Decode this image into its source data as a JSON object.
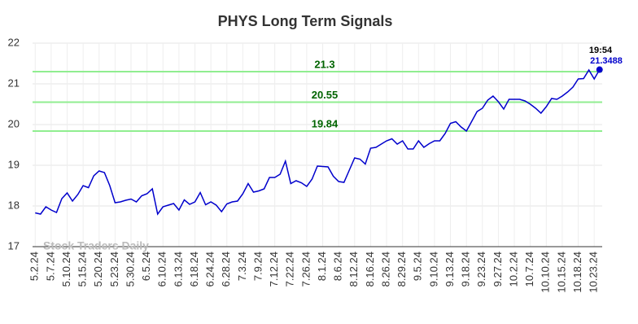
{
  "chart_data": {
    "type": "line",
    "title": "PHYS Long Term Signals",
    "categories": [
      "5.2.24",
      null,
      null,
      "5.7.24",
      null,
      null,
      "5.10.24",
      null,
      null,
      "5.15.24",
      null,
      null,
      "5.20.24",
      null,
      null,
      "5.23.24",
      null,
      null,
      "5.30.24",
      null,
      null,
      "6.5.24",
      null,
      null,
      "6.10.24",
      null,
      null,
      "6.13.24",
      null,
      null,
      "6.18.24",
      null,
      null,
      "6.24.24",
      null,
      null,
      "6.28.24",
      null,
      null,
      "7.3.24",
      null,
      null,
      "7.9.24",
      null,
      null,
      "7.12.24",
      null,
      null,
      "7.22.24",
      null,
      null,
      "7.26.24",
      null,
      null,
      "8.1.24",
      null,
      null,
      "8.6.24",
      null,
      null,
      "8.12.24",
      null,
      null,
      "8.16.24",
      null,
      null,
      "8.26.24",
      null,
      null,
      "8.29.24",
      null,
      null,
      "9.5.24",
      null,
      null,
      "9.10.24",
      null,
      null,
      "9.13.24",
      null,
      null,
      "9.18.24",
      null,
      null,
      "9.23.24",
      null,
      null,
      "9.27.24",
      null,
      null,
      "10.2.24",
      null,
      null,
      "10.7.24",
      null,
      null,
      "10.10.24",
      null,
      null,
      "10.15.24",
      null,
      null,
      "10.18.24",
      null,
      null,
      "10.23.24",
      null
    ],
    "values": [
      17.83,
      17.8,
      17.98,
      17.9,
      17.84,
      18.18,
      18.32,
      18.12,
      18.28,
      18.5,
      18.45,
      18.74,
      18.86,
      18.82,
      18.5,
      18.08,
      18.1,
      18.14,
      18.17,
      18.1,
      18.25,
      18.3,
      18.42,
      17.8,
      17.98,
      18.02,
      18.06,
      17.9,
      18.15,
      18.04,
      18.1,
      18.33,
      18.03,
      18.1,
      18.02,
      17.86,
      18.05,
      18.1,
      18.12,
      18.3,
      18.55,
      18.34,
      18.37,
      18.42,
      18.7,
      18.7,
      18.78,
      19.1,
      18.55,
      18.62,
      18.57,
      18.48,
      18.66,
      18.98,
      18.97,
      18.96,
      18.73,
      18.6,
      18.58,
      18.88,
      19.18,
      19.15,
      19.03,
      19.42,
      19.44,
      19.52,
      19.6,
      19.65,
      19.52,
      19.6,
      19.4,
      19.4,
      19.6,
      19.44,
      19.53,
      19.6,
      19.6,
      19.78,
      20.03,
      20.07,
      19.94,
      19.84,
      20.08,
      20.32,
      20.4,
      20.6,
      20.7,
      20.56,
      20.38,
      20.62,
      20.62,
      20.62,
      20.58,
      20.5,
      20.4,
      20.28,
      20.44,
      20.64,
      20.62,
      20.7,
      20.8,
      20.92,
      21.12,
      21.13,
      21.34,
      21.12,
      21.3488
    ],
    "color": "#0000cc",
    "hlines": [
      21.3,
      20.55,
      19.84
    ],
    "hline_color": "#90ee90",
    "hline_label_color": "#006400",
    "time_label": "19:54",
    "watermark": "Stock Traders Daily",
    "ylim": [
      17,
      22
    ],
    "yticks": [
      17,
      18,
      19,
      20,
      21,
      22
    ],
    "grid": true
  }
}
